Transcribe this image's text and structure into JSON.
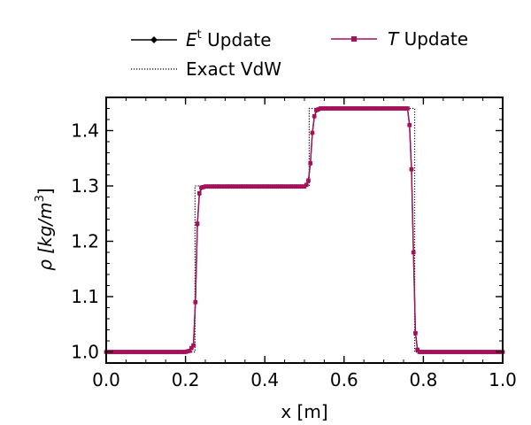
{
  "chart_data": {
    "type": "line",
    "xlabel": "x [m]",
    "ylabel_main": "ρ [kg/m",
    "ylabel_exp": "3",
    "ylabel_close": "]",
    "xlim": [
      0.0,
      1.0
    ],
    "ylim": [
      0.98,
      1.46
    ],
    "x_ticks": [
      "0.0",
      "0.2",
      "0.4",
      "0.6",
      "0.8",
      "1.0"
    ],
    "y_ticks": [
      "1.0",
      "1.1",
      "1.2",
      "1.3",
      "1.4"
    ],
    "legend_position": "top",
    "legend": {
      "et_base": "E",
      "et_sup": "t",
      "et_rest": " Update",
      "t_base": "T",
      "t_rest": " Update",
      "exact": "Exact VdW"
    },
    "series": [
      {
        "name": "E^t Update",
        "color": "#000000",
        "style": "solid-diamond",
        "profile": {
          "x": [
            0.0,
            0.2,
            0.21,
            0.22,
            0.225,
            0.23,
            0.235,
            0.24,
            0.25,
            0.5,
            0.505,
            0.51,
            0.515,
            0.52,
            0.525,
            0.53,
            0.54,
            0.76,
            0.765,
            0.77,
            0.775,
            0.78,
            0.785,
            0.79,
            1.0
          ],
          "y": [
            1.0,
            1.0,
            1.002,
            1.012,
            1.09,
            1.23,
            1.285,
            1.296,
            1.299,
            1.299,
            1.302,
            1.31,
            1.34,
            1.395,
            1.425,
            1.436,
            1.44,
            1.44,
            1.41,
            1.33,
            1.18,
            1.035,
            1.005,
            1.0,
            1.0
          ]
        }
      },
      {
        "name": "T Update",
        "color": "#a8105c",
        "style": "solid-square",
        "profile": {
          "x": [
            0.0,
            0.2,
            0.21,
            0.22,
            0.225,
            0.23,
            0.235,
            0.24,
            0.25,
            0.5,
            0.505,
            0.51,
            0.515,
            0.52,
            0.525,
            0.53,
            0.54,
            0.76,
            0.765,
            0.77,
            0.775,
            0.78,
            0.785,
            0.79,
            1.0
          ],
          "y": [
            1.0,
            1.0,
            1.002,
            1.012,
            1.09,
            1.232,
            1.287,
            1.297,
            1.299,
            1.299,
            1.302,
            1.31,
            1.341,
            1.396,
            1.426,
            1.437,
            1.44,
            1.44,
            1.41,
            1.33,
            1.18,
            1.034,
            1.004,
            1.0,
            1.0
          ]
        }
      },
      {
        "name": "Exact VdW",
        "color": "#000000",
        "style": "dotted",
        "x": [
          0.0,
          0.224,
          0.224,
          0.512,
          0.512,
          0.778,
          0.778,
          1.0
        ],
        "y": [
          1.0,
          1.0,
          1.3,
          1.3,
          1.44,
          1.44,
          1.0,
          1.0
        ]
      }
    ]
  }
}
